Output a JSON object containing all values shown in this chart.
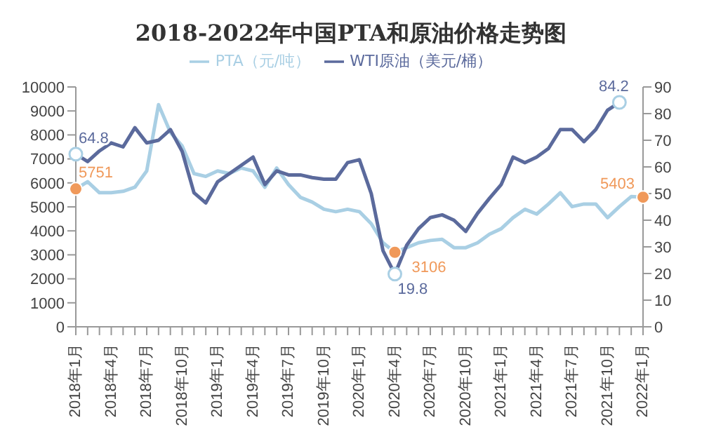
{
  "chart_data": {
    "type": "line",
    "title": "2018-2022年中国PTA和原油价格走势图",
    "categories": [
      "2018年1月",
      null,
      null,
      "2018年4月",
      null,
      null,
      "2018年7月",
      null,
      null,
      "2018年10月",
      null,
      null,
      "2019年1月",
      null,
      null,
      "2019年4月",
      null,
      null,
      "2019年7月",
      null,
      null,
      "2019年10月",
      null,
      null,
      "2020年1月",
      null,
      null,
      "2020年4月",
      null,
      null,
      "2020年7月",
      null,
      null,
      "2020年10月",
      null,
      null,
      "2021年1月",
      null,
      null,
      "2021年4月",
      null,
      null,
      "2021年7月",
      null,
      null,
      "2021年10月",
      null,
      null,
      "2022年1月"
    ],
    "series": [
      {
        "name": "PTA（元/吨）",
        "color": "#a9cfe4",
        "values": [
          5751,
          6050,
          5590,
          5590,
          5650,
          5820,
          6500,
          9260,
          8110,
          7540,
          6390,
          6270,
          6500,
          6390,
          6620,
          6500,
          5820,
          6620,
          5930,
          5400,
          5200,
          4900,
          4800,
          4900,
          4800,
          4300,
          3500,
          3106,
          3300,
          3500,
          3600,
          3650,
          3300,
          3300,
          3500,
          3860,
          4090,
          4550,
          4900,
          4700,
          5120,
          5590,
          5010,
          5120,
          5120,
          4550,
          5010,
          5430,
          5403
        ],
        "value_labels": [
          "5751",
          null,
          null,
          null,
          null,
          null,
          null,
          null,
          null,
          null,
          null,
          null,
          null,
          null,
          null,
          null,
          null,
          null,
          null,
          null,
          null,
          null,
          null,
          null,
          null,
          null,
          null,
          "3106",
          null,
          null,
          null,
          null,
          null,
          null,
          null,
          null,
          null,
          null,
          null,
          null,
          null,
          null,
          null,
          null,
          null,
          null,
          null,
          null,
          "5403"
        ]
      },
      {
        "name": "WTI原油（美元/桶）",
        "color": "#5b6a9c",
        "axis": "y2",
        "values": [
          64.8,
          62,
          66,
          69,
          67.5,
          74.7,
          69,
          70,
          74,
          65.8,
          50.3,
          46.5,
          54.4,
          57.5,
          60.6,
          63.7,
          53.4,
          58.5,
          57,
          57,
          56,
          55.4,
          55.4,
          61.6,
          62.7,
          50,
          28.5,
          19.8,
          30.6,
          36.8,
          41,
          42,
          40,
          35.8,
          42.6,
          48.2,
          53.4,
          63.7,
          61.6,
          63.7,
          66.9,
          74,
          74,
          69.5,
          74,
          81.3,
          84.2,
          null,
          null
        ],
        "value_labels": [
          "64.8",
          null,
          null,
          null,
          null,
          null,
          null,
          null,
          null,
          null,
          null,
          null,
          null,
          null,
          null,
          null,
          null,
          null,
          null,
          null,
          null,
          null,
          null,
          null,
          null,
          null,
          null,
          "19.8",
          null,
          null,
          null,
          null,
          null,
          null,
          null,
          null,
          null,
          null,
          null,
          null,
          null,
          null,
          null,
          null,
          null,
          null,
          "84.2",
          null,
          null
        ]
      }
    ],
    "ylim": [
      0,
      10000
    ],
    "yticks": [
      0,
      1000,
      2000,
      3000,
      4000,
      5000,
      6000,
      7000,
      8000,
      9000,
      10000
    ],
    "y2lim": [
      0,
      90
    ],
    "y2ticks": [
      0,
      10,
      20,
      30,
      40,
      50,
      60,
      70,
      80,
      90
    ],
    "grid": false,
    "legend": "top",
    "marker": "none",
    "line_style": "solid"
  }
}
